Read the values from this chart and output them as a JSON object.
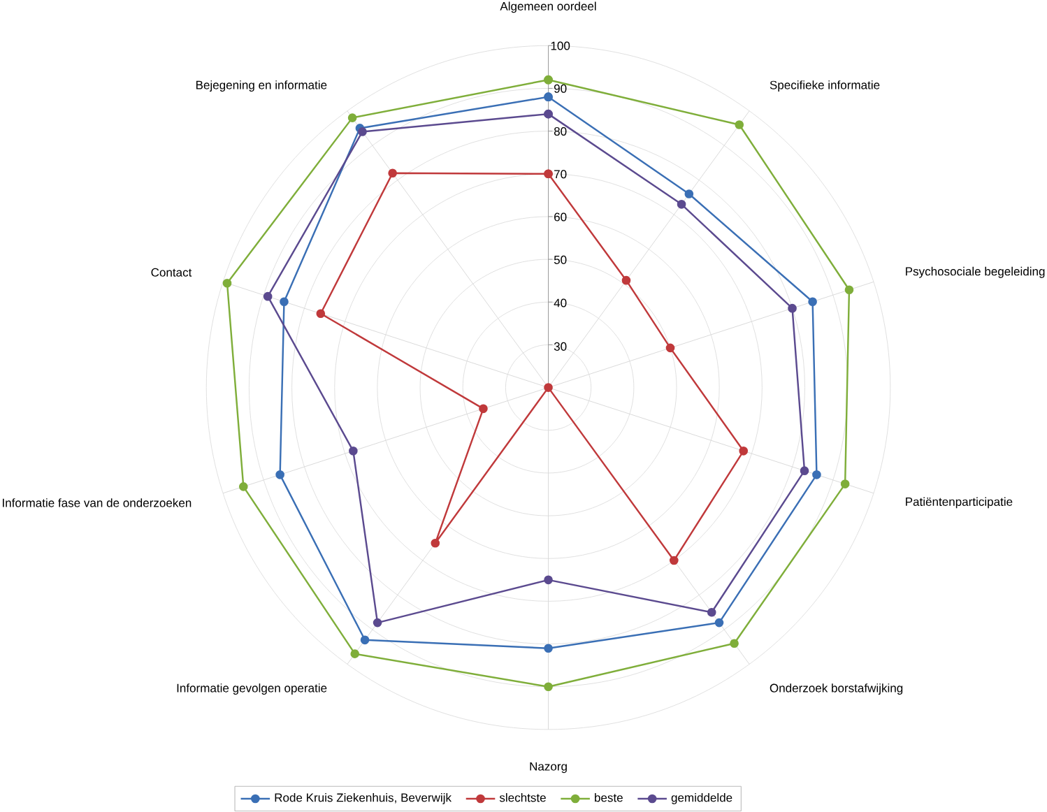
{
  "chart_data": {
    "type": "radar",
    "categories": [
      "Algemeen oordeel",
      "Specifieke informatie",
      "Psychosociale begeleiding",
      "Patiëntenparticipatie",
      "Onderzoek borstafwijking",
      "Nazorg",
      "Informatie gevolgen operatie",
      "Informatie fase van de onderzoeken",
      "Contact",
      "Bejegening en informatie"
    ],
    "series": [
      {
        "name": "Rode Kruis Ziekenhuis, Beverwijk",
        "color": "#3a6fb5",
        "values": [
          88,
          76,
          85,
          86,
          88,
          81,
          93,
          86,
          85,
          95
        ]
      },
      {
        "name": "slechtste",
        "color": "#c0393b",
        "values": [
          70,
          51,
          50,
          68,
          70,
          20,
          65,
          36,
          76,
          82
        ]
      },
      {
        "name": "beste",
        "color": "#7fae3a",
        "values": [
          92,
          96,
          94,
          93,
          94,
          90,
          97,
          95,
          99,
          98
        ]
      },
      {
        "name": "gemiddelde",
        "color": "#5b4a8f",
        "values": [
          84,
          73,
          80,
          83,
          85,
          65,
          88,
          68,
          89,
          94
        ]
      }
    ],
    "ylim": [
      20,
      100
    ],
    "yticks": [
      30,
      40,
      50,
      60,
      70,
      80,
      90,
      100
    ],
    "grid": true,
    "legend": "bottom",
    "marker": "circle"
  }
}
